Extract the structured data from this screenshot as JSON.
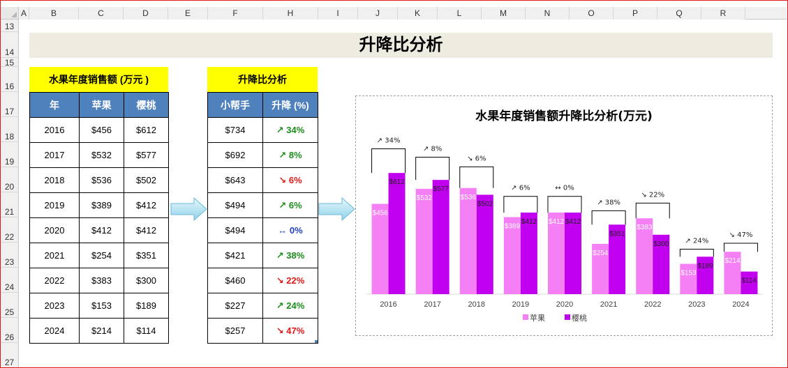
{
  "columns": [
    "A",
    "B",
    "C",
    "D",
    "E",
    "F",
    "H",
    "I",
    "J",
    "K",
    "L",
    "M",
    "N",
    "O",
    "P",
    "Q",
    "R"
  ],
  "rows": [
    "13",
    "14",
    "15",
    "16",
    "17",
    "18",
    "19",
    "20",
    "21",
    "22",
    "23",
    "24",
    "25",
    "26",
    "27"
  ],
  "banner": {
    "title": "升降比分析"
  },
  "sales_table": {
    "title": "水果年度销售额 (万元 )",
    "headers": [
      "年",
      "苹果",
      "樱桃"
    ],
    "rows": [
      [
        "2016",
        "$456",
        "$612"
      ],
      [
        "2017",
        "$532",
        "$577"
      ],
      [
        "2018",
        "$536",
        "$502"
      ],
      [
        "2019",
        "$389",
        "$412"
      ],
      [
        "2020",
        "$412",
        "$412"
      ],
      [
        "2021",
        "$254",
        "$351"
      ],
      [
        "2022",
        "$383",
        "$300"
      ],
      [
        "2023",
        "$153",
        "$189"
      ],
      [
        "2024",
        "$214",
        "$114"
      ]
    ]
  },
  "ratio_table": {
    "title": "升降比分析",
    "headers": [
      "小帮手",
      "升降 (%)"
    ],
    "rows": [
      [
        "$734",
        "↗ 34%"
      ],
      [
        "$692",
        "↗ 8%"
      ],
      [
        "$643",
        "↘ 6%"
      ],
      [
        "$494",
        "↗ 6%"
      ],
      [
        "$494",
        "↔ 0%"
      ],
      [
        "$421",
        "↗ 38%"
      ],
      [
        "$460",
        "↘ 22%"
      ],
      [
        "$227",
        "↗ 24%"
      ],
      [
        "$257",
        "↘ 47%"
      ]
    ],
    "directions": [
      "up",
      "up",
      "down",
      "up",
      "flat",
      "up",
      "down",
      "up",
      "down"
    ]
  },
  "colors": {
    "apple": "#f57ff5",
    "cherry": "#c200f0",
    "up": "#1a8c1a",
    "down": "#e01818",
    "flat": "#1f3fbf",
    "header_blue": "#4f81bd",
    "title_yellow": "#ffff00"
  },
  "chart_data": {
    "type": "bar",
    "title": "水果年度销售额升降比分析(万元)",
    "categories": [
      "2016",
      "2017",
      "2018",
      "2019",
      "2020",
      "2021",
      "2022",
      "2023",
      "2024"
    ],
    "series": [
      {
        "name": "苹果",
        "values": [
          456,
          532,
          536,
          389,
          412,
          254,
          383,
          153,
          214
        ]
      },
      {
        "name": "樱桃",
        "values": [
          612,
          577,
          502,
          412,
          412,
          351,
          300,
          189,
          114
        ]
      }
    ],
    "data_labels": {
      "苹果": [
        "$456",
        "$532",
        "$536",
        "$389",
        "$412",
        "$254",
        "$383",
        "$153",
        "$214"
      ],
      "樱桃": [
        "$612",
        "$577",
        "$502",
        "$412",
        "$412",
        "$351",
        "$300",
        "$189",
        "$114"
      ]
    },
    "change_labels": [
      "↗ 34%",
      "↗ 8%",
      "↘ 6%",
      "↗ 6%",
      "↔ 0%",
      "↗ 38%",
      "↘ 22%",
      "↗ 24%",
      "↘ 47%"
    ],
    "helper_values": [
      734,
      692,
      643,
      494,
      494,
      421,
      460,
      227,
      257
    ],
    "ylim": [
      0,
      800
    ],
    "grid": false,
    "legend": "bottom"
  }
}
